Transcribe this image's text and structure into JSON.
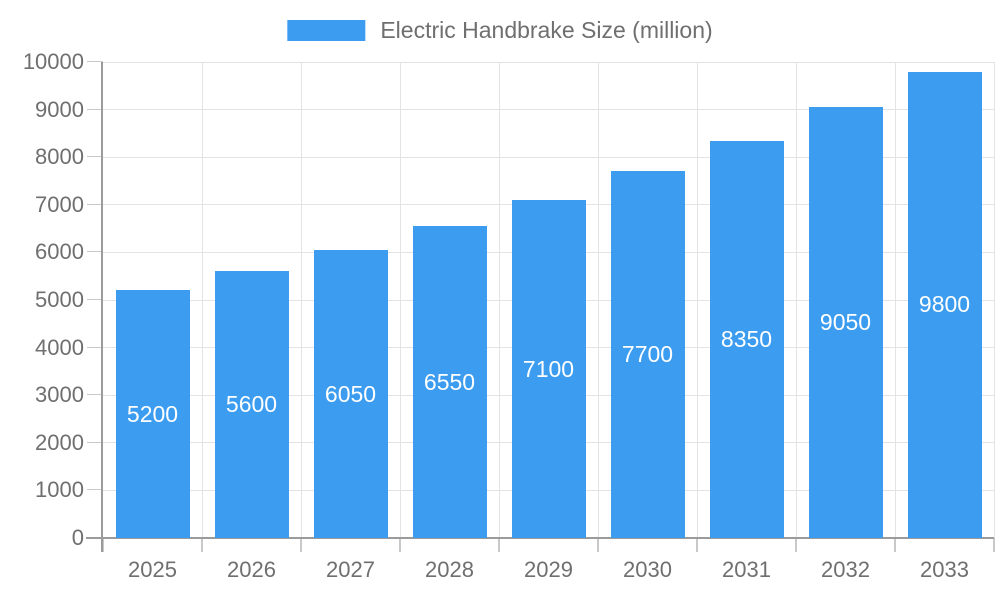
{
  "legend": {
    "items": [
      {
        "label": "Electric Handbrake Size (million)",
        "swatch_color": "#3B9CF0"
      }
    ]
  },
  "chart_data": {
    "type": "bar",
    "title": "Electric Handbrake Size (million)",
    "categories": [
      "2025",
      "2026",
      "2027",
      "2028",
      "2029",
      "2030",
      "2031",
      "2032",
      "2033"
    ],
    "series": [
      {
        "name": "Electric Handbrake Size (million)",
        "values": [
          5200,
          5600,
          6050,
          6550,
          7100,
          7700,
          8350,
          9050,
          9800
        ]
      }
    ],
    "xlabel": "",
    "ylabel": "",
    "ylim": [
      0,
      10000
    ],
    "ytick_step": 1000,
    "ytick_labels": [
      "0",
      "1000",
      "2000",
      "3000",
      "4000",
      "5000",
      "6000",
      "7000",
      "8000",
      "9000",
      "10000"
    ],
    "grid": true,
    "legend_position": "top",
    "bar_labels": {
      "position": "inside-center",
      "color": "#FFFFFF"
    },
    "colors": {
      "bar": "#3B9CF0",
      "grid": "#E3E3E3",
      "axis": "#9B9B9B",
      "tick": "#C9C9C9",
      "text": "#6F6F6F",
      "value_label": "#FFFFFF",
      "background": "#FFFFFF"
    }
  }
}
